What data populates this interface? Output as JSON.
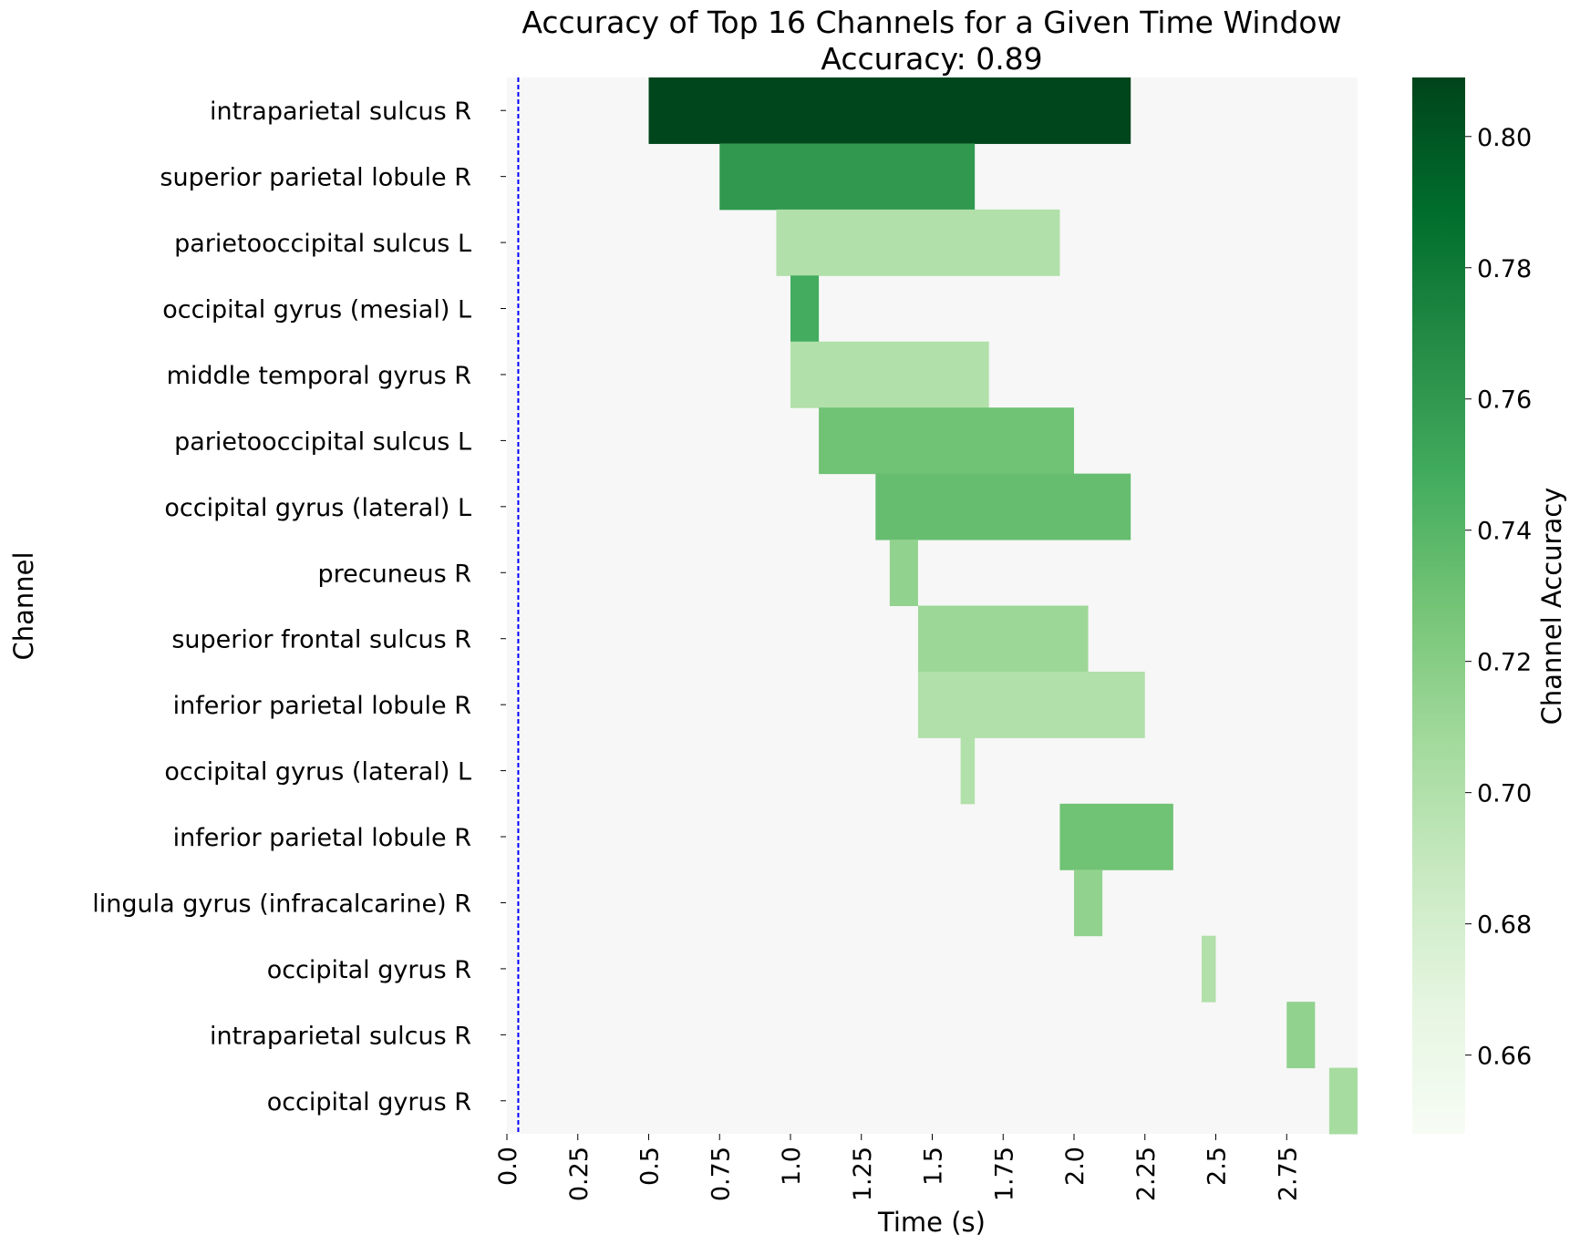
{
  "chart_data": {
    "type": "heatmap",
    "title": "Accuracy of Top 16 Channels for a Given Time Window",
    "subtitle": "Accuracy: 0.89",
    "xlabel": "Time (s)",
    "ylabel": "Channel",
    "colorbar_label": "Channel Accuracy",
    "xlim": [
      0,
      3.0
    ],
    "x_ticks": [
      0.0,
      0.25,
      0.5,
      0.75,
      1.0,
      1.25,
      1.5,
      1.75,
      2.0,
      2.25,
      2.5,
      2.75
    ],
    "x_tick_labels": [
      "0.0",
      "0.25",
      "0.5",
      "0.75",
      "1.0",
      "1.25",
      "1.5",
      "1.75",
      "2.0",
      "2.25",
      "2.5",
      "2.75"
    ],
    "colorbar_range": [
      0.648,
      0.809
    ],
    "colorbar_ticks": [
      0.66,
      0.68,
      0.7,
      0.72,
      0.74,
      0.76,
      0.78,
      0.8
    ],
    "colorbar_tick_labels": [
      "0.66",
      "0.68",
      "0.70",
      "0.72",
      "0.74",
      "0.76",
      "0.78",
      "0.80"
    ],
    "background_color": "#f7f7f7",
    "colormap": "Greens",
    "vline": {
      "x": 0.04,
      "color": "#0000ff",
      "style": "dashed"
    },
    "channels": [
      "intraparietal sulcus R",
      "superior parietal lobule R",
      "parietooccipital sulcus L",
      "occipital gyrus (mesial) L",
      "middle temporal gyrus R",
      "parietooccipital sulcus L",
      "occipital gyrus (lateral) L",
      "precuneus R",
      "superior frontal sulcus R",
      "inferior parietal lobule R",
      "occipital gyrus (lateral) L",
      "inferior parietal lobule R",
      "lingula gyrus (infracalcarine) R",
      "occipital gyrus R",
      "intraparietal sulcus R",
      "occipital gyrus R"
    ],
    "windows": [
      {
        "start": 0.5,
        "end": 2.2,
        "accuracy": 0.808
      },
      {
        "start": 0.75,
        "end": 1.65,
        "accuracy": 0.76
      },
      {
        "start": 0.95,
        "end": 1.95,
        "accuracy": 0.7
      },
      {
        "start": 1.0,
        "end": 1.1,
        "accuracy": 0.748
      },
      {
        "start": 1.0,
        "end": 1.7,
        "accuracy": 0.7
      },
      {
        "start": 1.1,
        "end": 2.0,
        "accuracy": 0.73
      },
      {
        "start": 1.3,
        "end": 2.2,
        "accuracy": 0.734
      },
      {
        "start": 1.35,
        "end": 1.45,
        "accuracy": 0.715
      },
      {
        "start": 1.45,
        "end": 2.05,
        "accuracy": 0.71
      },
      {
        "start": 1.45,
        "end": 2.25,
        "accuracy": 0.7
      },
      {
        "start": 1.6,
        "end": 1.65,
        "accuracy": 0.7
      },
      {
        "start": 1.95,
        "end": 2.35,
        "accuracy": 0.73
      },
      {
        "start": 2.0,
        "end": 2.1,
        "accuracy": 0.715
      },
      {
        "start": 2.45,
        "end": 2.5,
        "accuracy": 0.7
      },
      {
        "start": 2.75,
        "end": 2.85,
        "accuracy": 0.715
      },
      {
        "start": 2.9,
        "end": 3.0,
        "accuracy": 0.705
      }
    ]
  }
}
